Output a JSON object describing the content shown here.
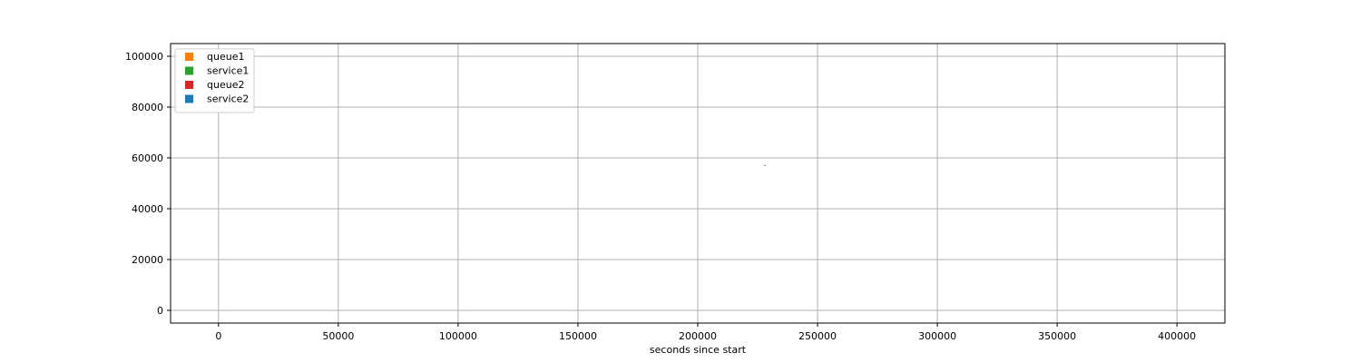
{
  "chart_data": {
    "type": "scatter",
    "title": "",
    "xlabel": "seconds since start",
    "ylabel": "",
    "xlim": [
      -20000,
      420000
    ],
    "ylim": [
      -5000,
      105000
    ],
    "x_ticks": [
      0,
      50000,
      100000,
      150000,
      200000,
      250000,
      300000,
      350000,
      400000
    ],
    "y_ticks": [
      0,
      20000,
      40000,
      60000,
      80000,
      100000
    ],
    "grid": true,
    "legend_position": "top-left",
    "series": [
      {
        "name": "queue1",
        "color": "#ff7f0e",
        "points": []
      },
      {
        "name": "service1",
        "color": "#2ca02c",
        "points": []
      },
      {
        "name": "queue2",
        "color": "#d62728",
        "points": []
      },
      {
        "name": "service2",
        "color": "#1f77b4",
        "points": [
          [
            228000,
            57000
          ]
        ]
      }
    ]
  }
}
